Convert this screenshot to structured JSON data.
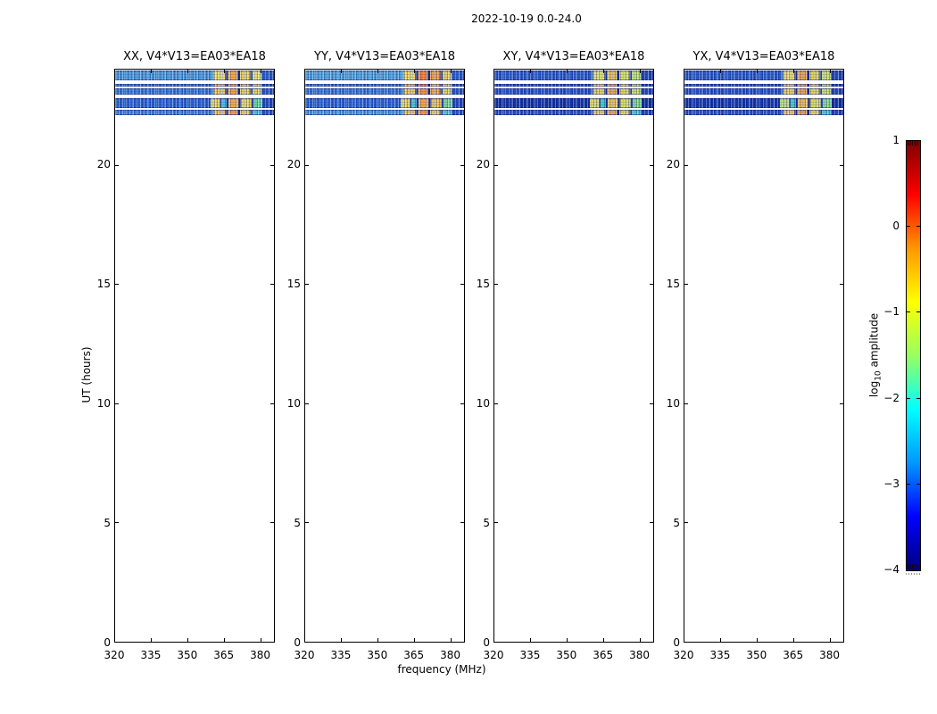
{
  "chart_data": {
    "type": "heatmap",
    "title": "2022-10-19 0.0-24.0",
    "xlabel": "frequency (MHz)",
    "ylabel": "UT (hours)",
    "x_ticks": [
      320,
      335,
      350,
      365,
      380
    ],
    "x_range_mhz": [
      320,
      386
    ],
    "y_ticks": [
      0,
      5,
      10,
      15,
      20
    ],
    "y_range_hours": [
      0,
      24
    ],
    "grid": false,
    "tick_direction": "in",
    "colorbar": {
      "label_pre": "log",
      "label_sub": "10",
      "label_post": " amplitude",
      "tick_labels": [
        "1",
        "0",
        "−1",
        "−2",
        "−3",
        "−4"
      ],
      "tick_values": [
        1,
        0,
        -1,
        -2,
        -3,
        -4
      ],
      "value_range": [
        -4,
        1
      ],
      "colormap": "jet",
      "gradient_stops_top_to_bottom": [
        "#7f0000",
        "#ff0000",
        "#ff9700",
        "#ffff00",
        "#97ff60",
        "#00ffff",
        "#0097ff",
        "#0000ff",
        "#00007f"
      ]
    },
    "panels": [
      {
        "title": "XX, V4*V13=EA03*EA18",
        "bands": [
          {
            "ut_start": 23.55,
            "ut_end": 23.97,
            "base": "#4d9bda",
            "tail": "#2d5ec9",
            "gap": "#16309d",
            "patches": [
              [
                0.62,
                0.695,
                "#efdf6f"
              ],
              [
                0.709,
                0.773,
                "#f3ab49"
              ],
              [
                0.787,
                0.851,
                "#ecd25d"
              ],
              [
                0.865,
                0.922,
                "#e9e273"
              ]
            ]
          },
          {
            "ut_start": 23.27,
            "ut_end": 23.4,
            "base": "#3b79d3",
            "tail": "#2a56c1",
            "gap": "#16309d",
            "patches": [
              [
                0.62,
                0.695,
                "#f1c256"
              ],
              [
                0.709,
                0.773,
                "#f2a949"
              ],
              [
                0.787,
                0.851,
                "#e9d05b"
              ],
              [
                0.865,
                0.922,
                "#e5db67"
              ]
            ]
          },
          {
            "ut_start": 22.95,
            "ut_end": 23.2,
            "base": "#3b79d3",
            "tail": "#2a56c1",
            "gap": "#16309d",
            "patches": [
              [
                0.62,
                0.695,
                "#eec95b"
              ],
              [
                0.709,
                0.773,
                "#f2a140"
              ],
              [
                0.787,
                0.851,
                "#e9d05b"
              ],
              [
                0.865,
                0.922,
                "#e2d45f"
              ]
            ]
          },
          {
            "ut_start": 22.38,
            "ut_end": 22.8,
            "base": "#2f64d1",
            "tail": "#2449b9",
            "gap": "#16309d",
            "patches": [
              [
                0.6,
                0.66,
                "#e7d663"
              ],
              [
                0.668,
                0.7,
                "#3dc5e1"
              ],
              [
                0.713,
                0.778,
                "#f1ad47"
              ],
              [
                0.792,
                0.858,
                "#e9d85f"
              ],
              [
                0.872,
                0.928,
                "#63d99b"
              ]
            ]
          },
          {
            "ut_start": 22.08,
            "ut_end": 22.31,
            "base": "#3f85d6",
            "tail": "#2a56c1",
            "gap": "#16309d",
            "patches": [
              [
                0.62,
                0.695,
                "#efc359"
              ],
              [
                0.709,
                0.773,
                "#f2a141"
              ],
              [
                0.787,
                0.851,
                "#e9d05b"
              ],
              [
                0.865,
                0.922,
                "#49c6d8"
              ]
            ]
          }
        ]
      },
      {
        "title": "YY, V4*V13=EA03*EA18",
        "bands": [
          {
            "ut_start": 23.55,
            "ut_end": 23.97,
            "base": "#54a3dd",
            "tail": "#2d5ec9",
            "gap": "#16309d",
            "patches": [
              [
                0.62,
                0.695,
                "#f1d963"
              ],
              [
                0.709,
                0.773,
                "#f2813b"
              ],
              [
                0.787,
                0.851,
                "#f09f45"
              ],
              [
                0.865,
                0.922,
                "#e9d063"
              ]
            ]
          },
          {
            "ut_start": 23.27,
            "ut_end": 23.4,
            "base": "#3b79d3",
            "tail": "#2a56c1",
            "gap": "#16309d",
            "patches": [
              [
                0.62,
                0.695,
                "#f2c155"
              ],
              [
                0.709,
                0.773,
                "#f08040"
              ],
              [
                0.787,
                0.851,
                "#eec44f"
              ],
              [
                0.865,
                0.922,
                "#e5db67"
              ]
            ]
          },
          {
            "ut_start": 22.95,
            "ut_end": 23.2,
            "base": "#3b79d3",
            "tail": "#2a56c1",
            "gap": "#16309d",
            "patches": [
              [
                0.62,
                0.695,
                "#eec95b"
              ],
              [
                0.709,
                0.773,
                "#f2953d"
              ],
              [
                0.787,
                0.851,
                "#f0a846"
              ],
              [
                0.865,
                0.922,
                "#e2d45f"
              ]
            ]
          },
          {
            "ut_start": 22.38,
            "ut_end": 22.8,
            "base": "#2f64d1",
            "tail": "#2449b9",
            "gap": "#16309d",
            "patches": [
              [
                0.6,
                0.66,
                "#e7d663"
              ],
              [
                0.668,
                0.7,
                "#45c8d2"
              ],
              [
                0.713,
                0.778,
                "#f1a744"
              ],
              [
                0.792,
                0.858,
                "#ecc351"
              ],
              [
                0.872,
                0.928,
                "#79d989"
              ]
            ]
          },
          {
            "ut_start": 22.08,
            "ut_end": 22.31,
            "base": "#46a0d8",
            "tail": "#2a56c1",
            "gap": "#16309d",
            "patches": [
              [
                0.62,
                0.695,
                "#efc359"
              ],
              [
                0.709,
                0.773,
                "#f29a3e"
              ],
              [
                0.787,
                0.851,
                "#e9d05b"
              ],
              [
                0.865,
                0.922,
                "#52c9d4"
              ]
            ]
          }
        ]
      },
      {
        "title": "XY, V4*V13=EA03*EA18",
        "bands": [
          {
            "ut_start": 23.55,
            "ut_end": 23.97,
            "base": "#2e5bc9",
            "tail": "#2446b4",
            "gap": "#16309d",
            "patches": [
              [
                0.62,
                0.695,
                "#e3e163"
              ],
              [
                0.709,
                0.773,
                "#eec14e"
              ],
              [
                0.787,
                0.851,
                "#dde060"
              ],
              [
                0.865,
                0.922,
                "#c2e170"
              ]
            ]
          },
          {
            "ut_start": 23.27,
            "ut_end": 23.4,
            "base": "#2a53c5",
            "tail": "#2446b4",
            "gap": "#16309d",
            "patches": [
              [
                0.62,
                0.695,
                "#e8cf58"
              ],
              [
                0.709,
                0.773,
                "#efae47"
              ],
              [
                0.787,
                0.851,
                "#e4d35c"
              ],
              [
                0.865,
                0.922,
                "#cfdd66"
              ]
            ]
          },
          {
            "ut_start": 22.95,
            "ut_end": 23.2,
            "base": "#2a53c5",
            "tail": "#2446b4",
            "gap": "#16309d",
            "patches": [
              [
                0.62,
                0.695,
                "#e8cf58"
              ],
              [
                0.709,
                0.773,
                "#efa846"
              ],
              [
                0.787,
                0.851,
                "#e4d35c"
              ],
              [
                0.865,
                0.922,
                "#cfdd66"
              ]
            ]
          },
          {
            "ut_start": 22.38,
            "ut_end": 22.8,
            "base": "#1733a2",
            "tail": "#14309c",
            "gap": "#16309d",
            "patches": [
              [
                0.6,
                0.66,
                "#e4d862"
              ],
              [
                0.668,
                0.7,
                "#49c9c9"
              ],
              [
                0.713,
                0.778,
                "#ecc250"
              ],
              [
                0.792,
                0.858,
                "#dede5e"
              ],
              [
                0.872,
                0.928,
                "#86d884"
              ]
            ]
          },
          {
            "ut_start": 22.08,
            "ut_end": 22.31,
            "base": "#2a53c5",
            "tail": "#2446b4",
            "gap": "#16309d",
            "patches": [
              [
                0.62,
                0.695,
                "#e9c956"
              ],
              [
                0.709,
                0.773,
                "#efa846"
              ],
              [
                0.787,
                0.851,
                "#e4d35c"
              ],
              [
                0.865,
                0.922,
                "#4ec7cf"
              ]
            ]
          }
        ]
      },
      {
        "title": "YX, V4*V13=EA03*EA18",
        "bands": [
          {
            "ut_start": 23.55,
            "ut_end": 23.97,
            "base": "#2e5bc9",
            "tail": "#2446b4",
            "gap": "#16309d",
            "patches": [
              [
                0.62,
                0.695,
                "#eeda62"
              ],
              [
                0.709,
                0.773,
                "#f0a243"
              ],
              [
                0.787,
                0.851,
                "#e6d45a"
              ],
              [
                0.865,
                0.922,
                "#cfe06c"
              ]
            ]
          },
          {
            "ut_start": 23.27,
            "ut_end": 23.4,
            "base": "#2a53c5",
            "tail": "#2446b4",
            "gap": "#16309d",
            "patches": [
              [
                0.62,
                0.695,
                "#ebcd55"
              ],
              [
                0.709,
                0.773,
                "#f0a846"
              ],
              [
                0.787,
                0.851,
                "#e6d45a"
              ],
              [
                0.865,
                0.922,
                "#cfdd66"
              ]
            ]
          },
          {
            "ut_start": 22.95,
            "ut_end": 23.2,
            "base": "#2a53c5",
            "tail": "#2446b4",
            "gap": "#16309d",
            "patches": [
              [
                0.62,
                0.695,
                "#ebcd55"
              ],
              [
                0.709,
                0.773,
                "#f0a040"
              ],
              [
                0.787,
                0.851,
                "#e6d45a"
              ],
              [
                0.865,
                0.922,
                "#cfdd66"
              ]
            ]
          },
          {
            "ut_start": 22.38,
            "ut_end": 22.8,
            "base": "#1838aa",
            "tail": "#14309c",
            "gap": "#16309d",
            "patches": [
              [
                0.6,
                0.66,
                "#bfe070"
              ],
              [
                0.668,
                0.7,
                "#49c9c9"
              ],
              [
                0.713,
                0.778,
                "#eeb94b"
              ],
              [
                0.792,
                0.858,
                "#e0dc5c"
              ],
              [
                0.872,
                0.928,
                "#8ad886"
              ]
            ]
          },
          {
            "ut_start": 22.08,
            "ut_end": 22.31,
            "base": "#2a53c5",
            "tail": "#2446b4",
            "gap": "#16309d",
            "patches": [
              [
                0.62,
                0.695,
                "#eec857"
              ],
              [
                0.709,
                0.773,
                "#f0a040"
              ],
              [
                0.787,
                0.851,
                "#e6d45a"
              ],
              [
                0.865,
                0.922,
                "#4ec7cf"
              ]
            ]
          }
        ]
      }
    ]
  }
}
